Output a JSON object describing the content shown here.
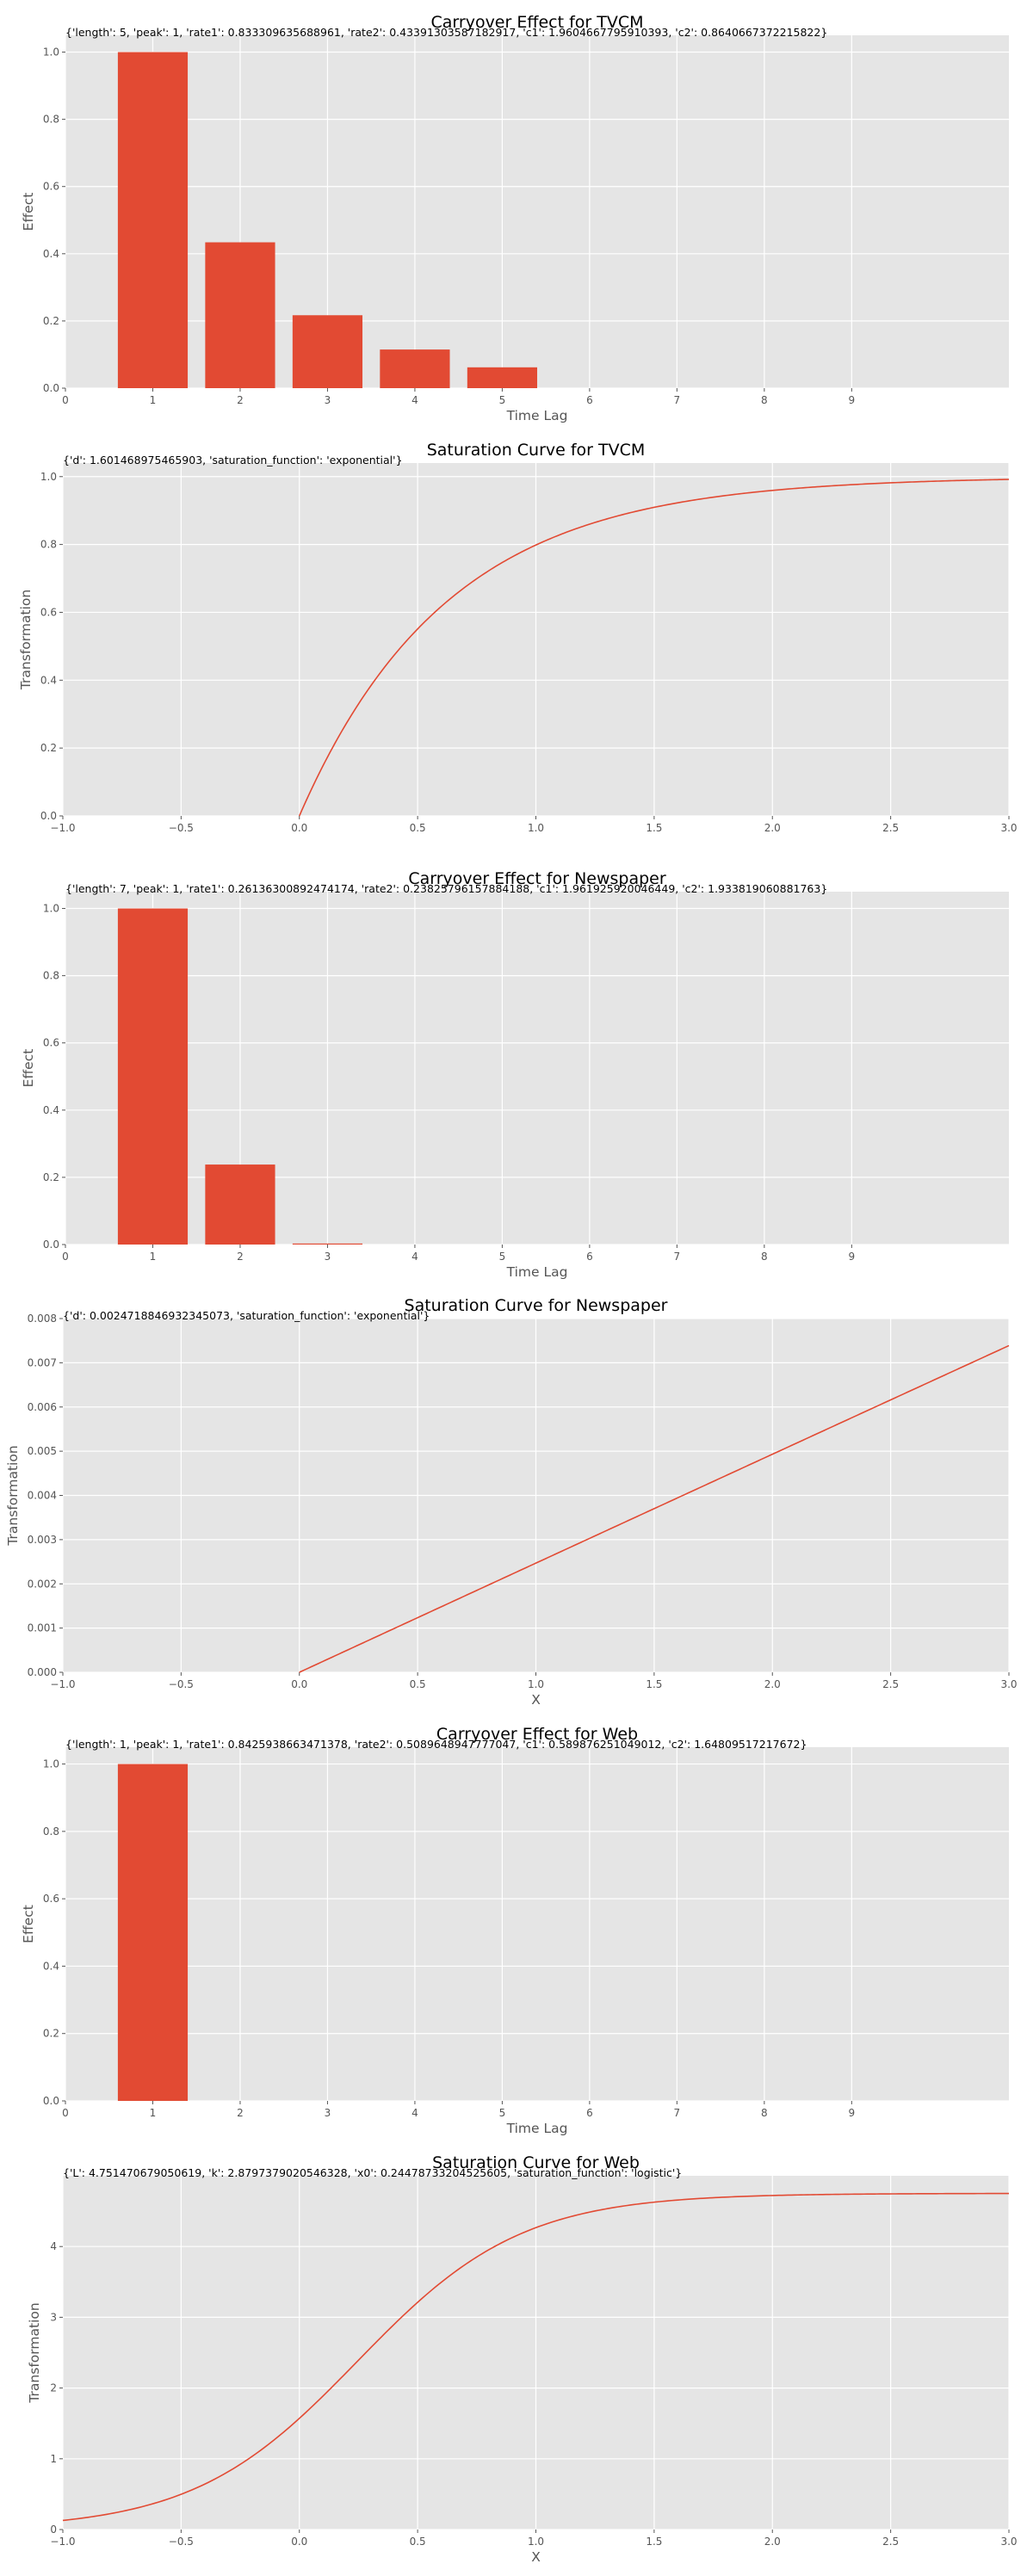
{
  "chart_data": [
    {
      "type": "bar",
      "title": "Carryover Effect for TVCM",
      "annotation": "{'length': 5, 'peak': 1, 'rate1': 0.833309635688961, 'rate2': 0.43391303587182917, 'c1': 1.9604667795910393, 'c2': 0.8640667372215822}",
      "xlabel": "Time Lag",
      "ylabel": "Effect",
      "x": [
        1,
        2,
        3,
        4,
        5
      ],
      "values": [
        1.0,
        0.434,
        0.217,
        0.115,
        0.062
      ],
      "xlim": [
        0,
        10.8
      ],
      "ylim": [
        0,
        1.05
      ],
      "xticks": [
        "0",
        "1",
        "2",
        "3",
        "4",
        "5",
        "6",
        "7",
        "8",
        "9"
      ],
      "yticks": [
        "0.0",
        "0.2",
        "0.4",
        "0.6",
        "0.8",
        "1.0"
      ],
      "color": "#E24A33",
      "grid": true
    },
    {
      "type": "line",
      "title": "Saturation Curve for TVCM",
      "annotation": "{'d': 1.601468975465903, 'saturation_function': 'exponential'}",
      "xlabel": "",
      "ylabel": "Transformation",
      "function": "exponential",
      "params": {
        "d": 1.601468975465903
      },
      "x_start": 0,
      "xlim": [
        -1,
        3
      ],
      "ylim": [
        0,
        1.04
      ],
      "xticks": [
        "−1.0",
        "−0.5",
        "0.0",
        "0.5",
        "1.0",
        "1.5",
        "2.0",
        "2.5",
        "3.0"
      ],
      "yticks": [
        "0.0",
        "0.2",
        "0.4",
        "0.6",
        "0.8",
        "1.0"
      ],
      "color": "#E24A33",
      "grid": true
    },
    {
      "type": "bar",
      "title": "Carryover Effect for Newspaper",
      "annotation": "{'length': 7, 'peak': 1, 'rate1': 0.26136300892474174, 'rate2': 0.23825796157884188, 'c1': 1.961925920046449, 'c2': 1.933819060881763}",
      "xlabel": "Time Lag",
      "ylabel": "Effect",
      "x": [
        1,
        2,
        3,
        4,
        5,
        6,
        7
      ],
      "values": [
        1.0,
        0.238,
        0.003,
        0.0,
        0.0,
        0.0,
        0.0
      ],
      "xlim": [
        0,
        10.8
      ],
      "ylim": [
        0,
        1.05
      ],
      "xticks": [
        "0",
        "1",
        "2",
        "3",
        "4",
        "5",
        "6",
        "7",
        "8",
        "9"
      ],
      "yticks": [
        "0.0",
        "0.2",
        "0.4",
        "0.6",
        "0.8",
        "1.0"
      ],
      "color": "#E24A33",
      "grid": true
    },
    {
      "type": "line",
      "title": "Saturation Curve for Newspaper",
      "annotation": "{'d': 0.0024718846932345073, 'saturation_function': 'exponential'}",
      "xlabel": "X",
      "ylabel": "Transformation",
      "function": "exponential",
      "params": {
        "d": 0.0024718846932345073
      },
      "x_start": 0,
      "xlim": [
        -1,
        3
      ],
      "ylim": [
        0,
        0.008
      ],
      "xticks": [
        "−1.0",
        "−0.5",
        "0.0",
        "0.5",
        "1.0",
        "1.5",
        "2.0",
        "2.5",
        "3.0"
      ],
      "yticks": [
        "0.000",
        "0.001",
        "0.002",
        "0.003",
        "0.004",
        "0.005",
        "0.006",
        "0.007",
        "0.008"
      ],
      "color": "#E24A33",
      "grid": true
    },
    {
      "type": "bar",
      "title": "Carryover Effect for Web",
      "annotation": "{'length': 1, 'peak': 1, 'rate1': 0.8425938663471378, 'rate2': 0.5089648947777047, 'c1': 0.589876251049012, 'c2': 1.64809517217672}",
      "xlabel": "Time Lag",
      "ylabel": "Effect",
      "x": [
        1
      ],
      "values": [
        1.0
      ],
      "xlim": [
        0,
        10.8
      ],
      "ylim": [
        0,
        1.05
      ],
      "xticks": [
        "0",
        "1",
        "2",
        "3",
        "4",
        "5",
        "6",
        "7",
        "8",
        "9"
      ],
      "yticks": [
        "0.0",
        "0.2",
        "0.4",
        "0.6",
        "0.8",
        "1.0"
      ],
      "color": "#E24A33",
      "grid": true
    },
    {
      "type": "line",
      "title": "Saturation Curve for Web",
      "annotation": "{'L': 4.751470679050619, 'k': 2.8797379020546328, 'x0': 0.24478733204525605, 'saturation_function': 'logistic'}",
      "xlabel": "X",
      "ylabel": "Transformation",
      "function": "logistic",
      "params": {
        "L": 4.751470679050619,
        "k": 2.8797379020546328,
        "x0": 0.24478733204525605
      },
      "x_start": -1,
      "xlim": [
        -1,
        3
      ],
      "ylim": [
        0,
        5
      ],
      "xticks": [
        "−1.0",
        "−0.5",
        "0.0",
        "0.5",
        "1.0",
        "1.5",
        "2.0",
        "2.5",
        "3.0"
      ],
      "yticks": [
        "0",
        "1",
        "2",
        "3",
        "4"
      ],
      "color": "#E24A33",
      "grid": true
    }
  ]
}
